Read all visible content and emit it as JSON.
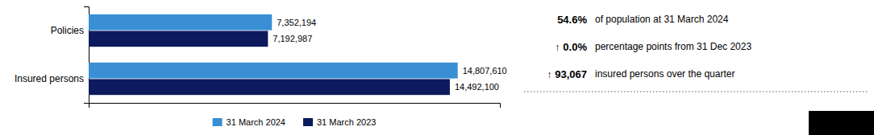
{
  "chart_data": {
    "type": "bar",
    "orientation": "horizontal",
    "categories": [
      "Insured persons",
      "Policies"
    ],
    "series": [
      {
        "name": "31 March 2024",
        "color": "#3a8fd4",
        "values": [
          14807610,
          7352194
        ],
        "value_labels": [
          "14,807,610",
          "7,352,194"
        ]
      },
      {
        "name": "31 March 2023",
        "color": "#0d1a5e",
        "values": [
          14492100,
          7192987
        ],
        "value_labels": [
          "14,492,100",
          "7,192,987"
        ]
      }
    ],
    "xlim": [
      0,
      16500000
    ],
    "data_labels": true,
    "tick_labels": "y",
    "grid": false,
    "legend": "bottom",
    "annotations": [
      "54.6%",
      "of population at 31 March 2024",
      "↑ 0.0%",
      "percentage points from 31 Dec 2023",
      "↑ 93,067",
      "insured persons over the quarter"
    ]
  }
}
